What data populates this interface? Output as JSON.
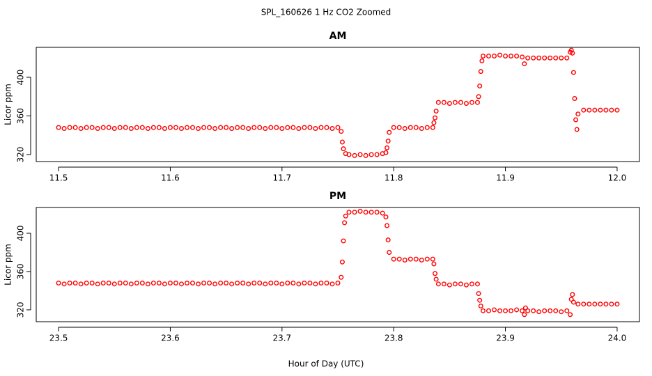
{
  "title": "SPL_160626  1 Hz CO2 Zoomed",
  "xlabel": "Hour of Day (UTC)",
  "chart_data": [
    {
      "type": "scatter",
      "title": "AM",
      "ylabel": "Licor ppm",
      "color": "#ff0000",
      "xlim": [
        11.48,
        12.02
      ],
      "ylim": [
        312.8,
        431
      ],
      "xticks": [
        11.5,
        11.6,
        11.7,
        11.8,
        11.9,
        {
          "value": 12,
          "label": "12.0"
        }
      ],
      "yticks": [
        320,
        360,
        400
      ],
      "x": [
        11.5,
        11.505,
        11.51,
        11.515,
        11.52,
        11.525,
        11.53,
        11.535,
        11.54,
        11.545,
        11.55,
        11.555,
        11.56,
        11.565,
        11.57,
        11.575,
        11.58,
        11.585,
        11.59,
        11.595,
        11.6,
        11.605,
        11.61,
        11.615,
        11.62,
        11.625,
        11.63,
        11.635,
        11.64,
        11.645,
        11.65,
        11.655,
        11.66,
        11.665,
        11.67,
        11.675,
        11.68,
        11.685,
        11.69,
        11.695,
        11.7,
        11.705,
        11.71,
        11.715,
        11.72,
        11.725,
        11.73,
        11.735,
        11.74,
        11.745,
        11.75,
        11.753,
        11.754,
        11.755,
        11.757,
        11.76,
        11.765,
        11.77,
        11.775,
        11.78,
        11.785,
        11.79,
        11.793,
        11.794,
        11.795,
        11.796,
        11.8,
        11.805,
        11.81,
        11.815,
        11.82,
        11.825,
        11.83,
        11.835,
        11.836,
        11.837,
        11.838,
        11.84,
        11.845,
        11.85,
        11.855,
        11.86,
        11.865,
        11.87,
        11.875,
        11.876,
        11.877,
        11.878,
        11.879,
        11.88,
        11.885,
        11.89,
        11.895,
        11.9,
        11.905,
        11.91,
        11.915,
        11.917,
        11.92,
        11.925,
        11.93,
        11.935,
        11.94,
        11.945,
        11.95,
        11.955,
        11.958,
        11.959,
        11.96,
        11.961,
        11.962,
        11.963,
        11.964,
        11.965,
        11.97,
        11.975,
        11.98,
        11.985,
        11.99,
        11.995,
        12.0
      ],
      "values": [
        348,
        347,
        348,
        348,
        347,
        348,
        348,
        347,
        348,
        348,
        347,
        348,
        348,
        347,
        348,
        348,
        347,
        348,
        348,
        347,
        348,
        348,
        347,
        348,
        348,
        347,
        348,
        348,
        347,
        348,
        348,
        347,
        348,
        348,
        347,
        348,
        348,
        347,
        348,
        348,
        347,
        348,
        348,
        347,
        348,
        348,
        347,
        348,
        348,
        347,
        348,
        344,
        333,
        326,
        321,
        320,
        319,
        320,
        319,
        320,
        320,
        321,
        322,
        327,
        334,
        343,
        348,
        348,
        347,
        348,
        348,
        347,
        348,
        348,
        353,
        358,
        365,
        374,
        374,
        373,
        374,
        374,
        373,
        374,
        374,
        380,
        391,
        406,
        417,
        422,
        422,
        422,
        423,
        422,
        422,
        422,
        421,
        414,
        420,
        420,
        420,
        420,
        420,
        420,
        420,
        420,
        426,
        428,
        425,
        405,
        378,
        356,
        346,
        362,
        366,
        366,
        366,
        366,
        366,
        366,
        366
      ]
    },
    {
      "type": "scatter",
      "title": "PM",
      "ylabel": "Licor ppm",
      "color": "#ff0000",
      "xlim": [
        23.48,
        24.02
      ],
      "ylim": [
        307.6,
        426.9
      ],
      "xticks": [
        23.5,
        23.6,
        23.7,
        23.8,
        23.9,
        {
          "value": 24,
          "label": "24.0"
        }
      ],
      "yticks": [
        320,
        360,
        400
      ],
      "x": [
        23.5,
        23.505,
        23.51,
        23.515,
        23.52,
        23.525,
        23.53,
        23.535,
        23.54,
        23.545,
        23.55,
        23.555,
        23.56,
        23.565,
        23.57,
        23.575,
        23.58,
        23.585,
        23.59,
        23.595,
        23.6,
        23.605,
        23.61,
        23.615,
        23.62,
        23.625,
        23.63,
        23.635,
        23.64,
        23.645,
        23.65,
        23.655,
        23.66,
        23.665,
        23.67,
        23.675,
        23.68,
        23.685,
        23.69,
        23.695,
        23.7,
        23.705,
        23.71,
        23.715,
        23.72,
        23.725,
        23.73,
        23.735,
        23.74,
        23.745,
        23.75,
        23.753,
        23.754,
        23.755,
        23.756,
        23.757,
        23.76,
        23.765,
        23.77,
        23.775,
        23.78,
        23.785,
        23.79,
        23.793,
        23.794,
        23.795,
        23.796,
        23.8,
        23.805,
        23.81,
        23.815,
        23.82,
        23.825,
        23.83,
        23.835,
        23.836,
        23.837,
        23.838,
        23.84,
        23.845,
        23.85,
        23.855,
        23.86,
        23.865,
        23.87,
        23.875,
        23.876,
        23.877,
        23.878,
        23.88,
        23.885,
        23.89,
        23.895,
        23.9,
        23.905,
        23.91,
        23.915,
        23.917,
        23.918,
        23.92,
        23.925,
        23.93,
        23.935,
        23.94,
        23.945,
        23.95,
        23.955,
        23.958,
        23.959,
        23.96,
        23.961,
        23.965,
        23.97,
        23.975,
        23.98,
        23.985,
        23.99,
        23.995,
        24.0
      ],
      "values": [
        348,
        347,
        348,
        348,
        347,
        348,
        348,
        347,
        348,
        348,
        347,
        348,
        348,
        347,
        348,
        348,
        347,
        348,
        348,
        347,
        348,
        348,
        347,
        348,
        348,
        347,
        348,
        348,
        347,
        348,
        348,
        347,
        348,
        348,
        347,
        348,
        348,
        347,
        348,
        348,
        347,
        348,
        348,
        347,
        348,
        348,
        347,
        348,
        348,
        347,
        348,
        354,
        370,
        392,
        411,
        418,
        422,
        422,
        423,
        422,
        422,
        422,
        421,
        417,
        408,
        393,
        380,
        373,
        373,
        372,
        373,
        373,
        372,
        373,
        373,
        368,
        358,
        352,
        347,
        347,
        346,
        347,
        347,
        346,
        347,
        347,
        337,
        330,
        324,
        319,
        319,
        320,
        319,
        319,
        319,
        320,
        319,
        315,
        322,
        319,
        319,
        318,
        319,
        319,
        319,
        318,
        319,
        315,
        331,
        336,
        328,
        326,
        326,
        326,
        326,
        326,
        326,
        326,
        326
      ]
    }
  ]
}
